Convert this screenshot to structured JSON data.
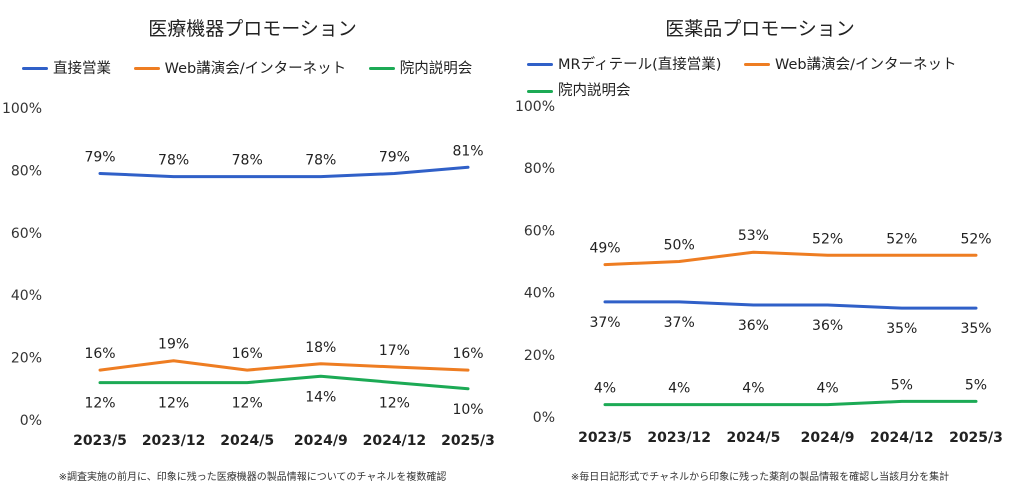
{
  "chart_data": [
    {
      "type": "line",
      "title": "医療機器プロモーション",
      "categories": [
        "2023/5",
        "2023/12",
        "2024/5",
        "2024/9",
        "2024/12",
        "2025/3"
      ],
      "ylim": [
        0,
        100
      ],
      "y_ticks": [
        "0%",
        "20%",
        "40%",
        "60%",
        "80%",
        "100%"
      ],
      "y_tick_values": [
        0,
        20,
        40,
        60,
        80,
        100
      ],
      "grid": false,
      "legend_position": "top",
      "series": [
        {
          "name": "直接営業",
          "color": "#3060C8",
          "values": [
            79,
            78,
            78,
            78,
            79,
            81
          ],
          "labels": [
            "79%",
            "78%",
            "78%",
            "78%",
            "79%",
            "81%"
          ],
          "label_position": "above"
        },
        {
          "name": "Web講演会/インターネット",
          "color": "#EE7D22",
          "values": [
            16,
            19,
            16,
            18,
            17,
            16
          ],
          "labels": [
            "16%",
            "19%",
            "16%",
            "18%",
            "17%",
            "16%"
          ],
          "label_position": "above"
        },
        {
          "name": "院内説明会",
          "color": "#1CAA55",
          "values": [
            12,
            12,
            12,
            14,
            12,
            10
          ],
          "labels": [
            "12%",
            "12%",
            "12%",
            "14%",
            "12%",
            "10%"
          ],
          "label_position": "below"
        }
      ],
      "footnote": "※調査実施の前月に、印象に残った医療機器の製品情報についてのチャネルを複数確認"
    },
    {
      "type": "line",
      "title": "医薬品プロモーション",
      "categories": [
        "2023/5",
        "2023/12",
        "2024/5",
        "2024/9",
        "2024/12",
        "2025/3"
      ],
      "ylim": [
        0,
        100
      ],
      "y_ticks": [
        "0%",
        "20%",
        "40%",
        "60%",
        "80%",
        "100%"
      ],
      "y_tick_values": [
        0,
        20,
        40,
        60,
        80,
        100
      ],
      "grid": false,
      "legend_position": "top",
      "series": [
        {
          "name": "MRディテール(直接営業)",
          "color": "#3060C8",
          "values": [
            37,
            37,
            36,
            36,
            35,
            35
          ],
          "labels": [
            "37%",
            "37%",
            "36%",
            "36%",
            "35%",
            "35%"
          ],
          "label_position": "below"
        },
        {
          "name": "Web講演会/インターネット",
          "color": "#EE7D22",
          "values": [
            49,
            50,
            53,
            52,
            52,
            52
          ],
          "labels": [
            "49%",
            "50%",
            "53%",
            "52%",
            "52%",
            "52%"
          ],
          "label_position": "above"
        },
        {
          "name": "院内説明会",
          "color": "#1CAA55",
          "values": [
            4,
            4,
            4,
            4,
            5,
            5
          ],
          "labels": [
            "4%",
            "4%",
            "4%",
            "4%",
            "5%",
            "5%"
          ],
          "label_position": "above"
        }
      ],
      "footnote": "※毎日日記形式でチャネルから印象に残った薬剤の製品情報を確認し当該月分を集計"
    }
  ]
}
